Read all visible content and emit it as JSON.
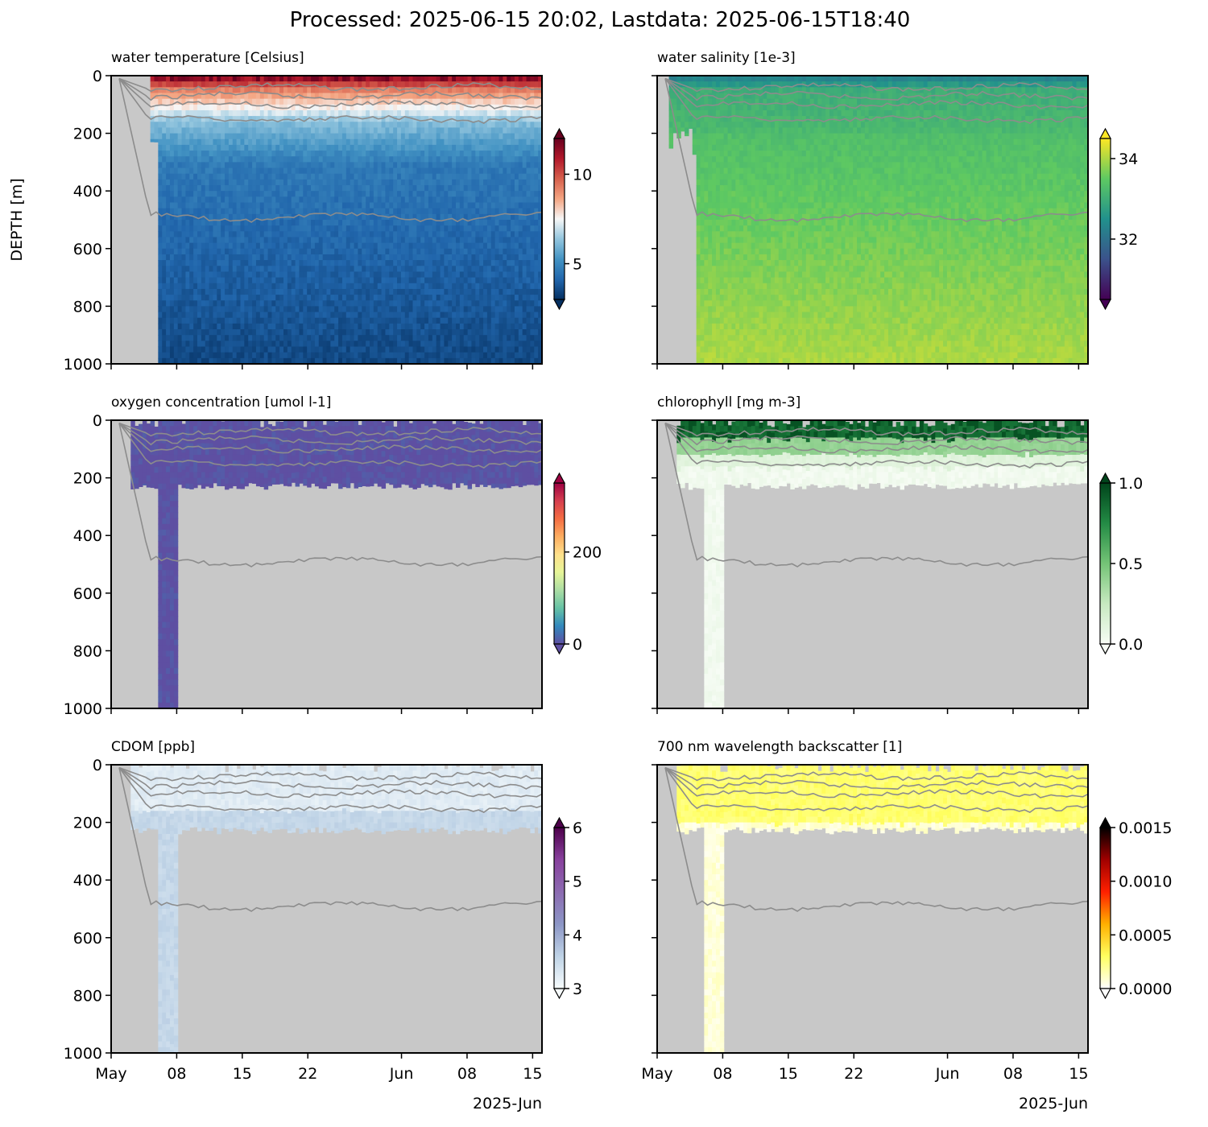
{
  "figure": {
    "suptitle": "Processed: 2025-06-15 20:02, Lastdata: 2025-06-15T18:40",
    "ylabel": "DEPTH [m]",
    "x_year_label": "2025-Jun",
    "x_ticks": [
      "May",
      "08",
      "15",
      "22",
      "Jun",
      "08",
      "15"
    ],
    "y_ticks": [
      "0",
      "200",
      "400",
      "600",
      "800",
      "1000"
    ],
    "nodata_color": "#c8c8c8",
    "contour_color": "#8c8c8c"
  },
  "chart_data": [
    {
      "type": "heatmap",
      "title": "water temperature [Celsius]",
      "ylabel": "DEPTH [m]",
      "xlabel": "",
      "x_range": [
        "2025-05-01",
        "2025-06-16"
      ],
      "ylim": [
        1000,
        0
      ],
      "colormap": "RdBu_r",
      "colorbar": {
        "range": [
          3,
          12
        ],
        "ticks": [
          5,
          10
        ],
        "extend": "both",
        "colors": [
          "#053061",
          "#2166ac",
          "#4393c3",
          "#92c5de",
          "#f7f7f7",
          "#f4a582",
          "#d6604d",
          "#b2182b",
          "#67001f"
        ]
      },
      "valid_depth_max": 1000,
      "profile_start": "2025-05-05",
      "deep_start": "2025-05-06"
    },
    {
      "type": "heatmap",
      "title": "water salinity [1e-3]",
      "x_range": [
        "2025-05-01",
        "2025-06-16"
      ],
      "ylim": [
        1000,
        0
      ],
      "colormap": "viridis",
      "colorbar": {
        "range": [
          30.5,
          34.5
        ],
        "ticks": [
          32,
          34
        ],
        "extend": "both",
        "colors": [
          "#440154",
          "#3b528b",
          "#21918c",
          "#5ec962",
          "#fde725"
        ]
      },
      "valid_depth_max": 1000,
      "profile_start": "2025-05-02",
      "deep_start": "2025-05-05"
    },
    {
      "type": "heatmap",
      "title": "oxygen concentration [umol l-1]",
      "x_range": [
        "2025-05-01",
        "2025-06-16"
      ],
      "ylim": [
        1000,
        0
      ],
      "colormap": "Spectral_r",
      "colorbar": {
        "range": [
          0,
          350
        ],
        "ticks": [
          0,
          200
        ],
        "extend": "both",
        "colors": [
          "#5e4fa2",
          "#3288bd",
          "#66c2a5",
          "#abdda4",
          "#e6f598",
          "#fee08b",
          "#fdae61",
          "#f46d43",
          "#d53e4f",
          "#9e0142"
        ]
      },
      "valid_depth_max": 230,
      "profile_start": "2025-05-03",
      "deep_start": "2025-05-06"
    },
    {
      "type": "heatmap",
      "title": "chlorophyll [mg m-3]",
      "x_range": [
        "2025-05-01",
        "2025-06-16"
      ],
      "ylim": [
        1000,
        0
      ],
      "colormap": "Greens",
      "colorbar": {
        "range": [
          0,
          1
        ],
        "ticks": [
          0.0,
          0.5,
          1.0
        ],
        "extend": "both",
        "colors": [
          "#f7fcf5",
          "#c7e9c0",
          "#74c476",
          "#238b45",
          "#00441b"
        ]
      },
      "valid_depth_max": 230,
      "profile_start": "2025-05-03",
      "deep_start": "2025-05-06"
    },
    {
      "type": "heatmap",
      "title": "CDOM [ppb]",
      "x_range": [
        "2025-05-01",
        "2025-06-16"
      ],
      "ylim": [
        1000,
        0
      ],
      "colormap": "BuPu",
      "colorbar": {
        "range": [
          3,
          6
        ],
        "ticks": [
          3,
          4,
          5,
          6
        ],
        "extend": "both",
        "colors": [
          "#f7fcfd",
          "#bfd3e6",
          "#8c96c6",
          "#8c6bb1",
          "#88419d",
          "#4d004b"
        ]
      },
      "valid_depth_max": 230,
      "profile_start": "2025-05-03",
      "deep_start": "2025-05-06"
    },
    {
      "type": "heatmap",
      "title": "700 nm wavelength backscatter [1]",
      "x_range": [
        "2025-05-01",
        "2025-06-16"
      ],
      "ylim": [
        1000,
        0
      ],
      "colormap": "hot_r",
      "colorbar": {
        "range": [
          0,
          0.0015
        ],
        "ticks": [
          "0.0000",
          "0.0005",
          "0.0010",
          "0.0015"
        ],
        "extend": "both",
        "colors": [
          "#ffffff",
          "#ffff60",
          "#ffb000",
          "#ff2000",
          "#a00000",
          "#000000"
        ]
      },
      "valid_depth_max": 230,
      "profile_start": "2025-05-03",
      "deep_start": "2025-05-06"
    }
  ]
}
